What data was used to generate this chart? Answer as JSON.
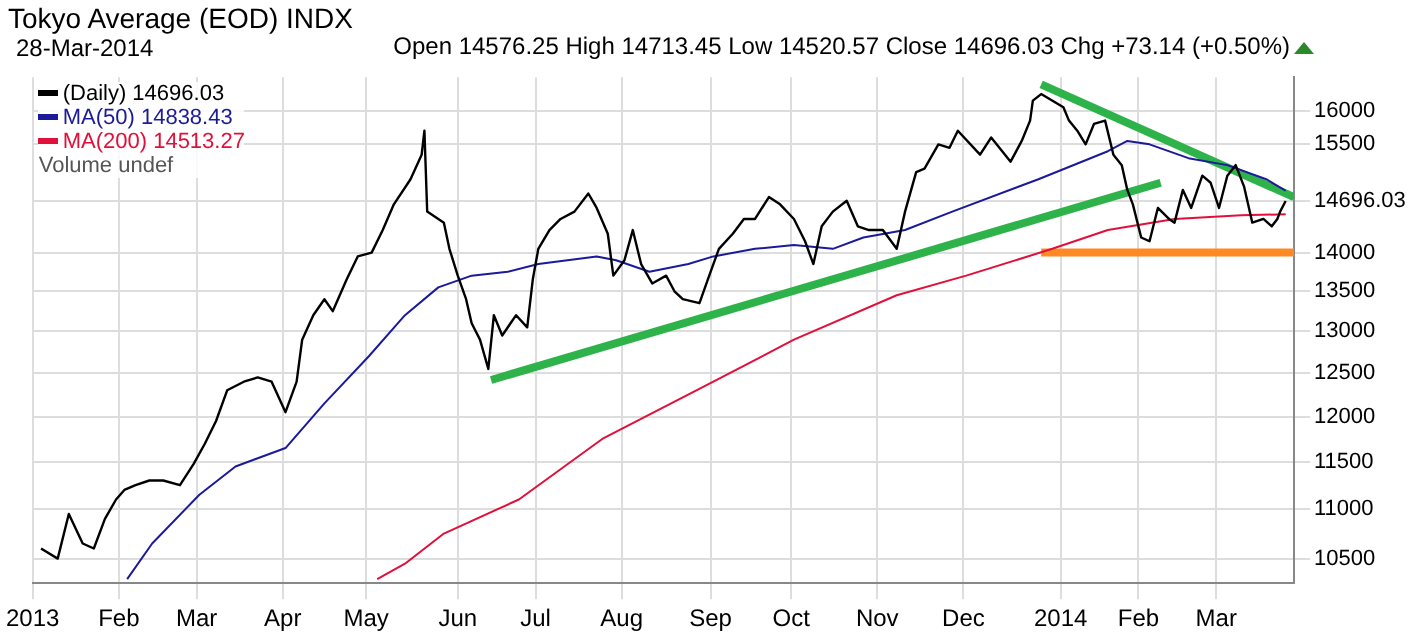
{
  "chart_data": {
    "type": "line",
    "title": "Tokyo Average (EOD) INDX",
    "subtitle": "28-Mar-2014",
    "annotations": [
      "Open 14576.25 High 14713.45 Low 14520.57 Close 14696.03 Chg +73.14 (+0.50%)",
      "Volume undef"
    ],
    "log": "y",
    "grid": true,
    "legend": "top left",
    "marker": "none",
    "xlim": [
      "2013-01-01",
      "2014-03-31"
    ],
    "xticks": [
      {
        "value": "2013-01-01",
        "label": "2013"
      },
      {
        "value": "2013-02-01",
        "label": "Feb"
      },
      {
        "value": "2013-03-01",
        "label": "Mar"
      },
      {
        "value": "2013-04-01",
        "label": "Apr"
      },
      {
        "value": "2013-05-01",
        "label": "May"
      },
      {
        "value": "2013-06-03",
        "label": "Jun"
      },
      {
        "value": "2013-07-01",
        "label": "Jul"
      },
      {
        "value": "2013-08-01",
        "label": "Aug"
      },
      {
        "value": "2013-09-02",
        "label": "Sep"
      },
      {
        "value": "2013-10-01",
        "label": "Oct"
      },
      {
        "value": "2013-11-01",
        "label": "Nov"
      },
      {
        "value": "2013-12-02",
        "label": "Dec"
      },
      {
        "value": "2014-01-06",
        "label": "2014"
      },
      {
        "value": "2014-02-03",
        "label": "Feb"
      },
      {
        "value": "2014-03-03",
        "label": "Mar"
      }
    ],
    "ylim": [
      10260,
      16510
    ],
    "yticks": [
      10500,
      11000,
      11500,
      12000,
      12500,
      13000,
      13500,
      14000,
      14696.03,
      15500,
      16000
    ],
    "series": [
      {
        "name": "(Daily) 14696.03",
        "color": "#000000",
        "x": [
          "2013-01-04",
          "2013-01-10",
          "2013-01-14",
          "2013-01-19",
          "2013-01-23",
          "2013-01-27",
          "2013-01-31",
          "2013-02-03",
          "2013-02-07",
          "2013-02-12",
          "2013-02-17",
          "2013-02-23",
          "2013-02-28",
          "2013-03-04",
          "2013-03-08",
          "2013-03-12",
          "2013-03-18",
          "2013-03-23",
          "2013-03-28",
          "2013-04-02",
          "2013-04-06",
          "2013-04-08",
          "2013-04-12",
          "2013-04-16",
          "2013-04-19",
          "2013-04-24",
          "2013-04-28",
          "2013-05-03",
          "2013-05-07",
          "2013-05-11",
          "2013-05-17",
          "2013-05-21",
          "2013-05-22",
          "2013-05-23",
          "2013-05-29",
          "2013-05-31",
          "2013-06-03",
          "2013-06-06",
          "2013-06-08",
          "2013-06-11",
          "2013-06-14",
          "2013-06-16",
          "2013-06-19",
          "2013-06-22",
          "2013-06-24",
          "2013-06-28",
          "2013-06-30",
          "2013-07-02",
          "2013-07-06",
          "2013-07-10",
          "2013-07-15",
          "2013-07-20",
          "2013-07-23",
          "2013-07-27",
          "2013-07-29",
          "2013-08-02",
          "2013-08-05",
          "2013-08-08",
          "2013-08-12",
          "2013-08-17",
          "2013-08-20",
          "2013-08-23",
          "2013-08-29",
          "2013-09-01",
          "2013-09-05",
          "2013-09-10",
          "2013-09-14",
          "2013-09-18",
          "2013-09-23",
          "2013-09-27",
          "2013-10-02",
          "2013-10-06",
          "2013-10-09",
          "2013-10-12",
          "2013-10-16",
          "2013-10-21",
          "2013-10-25",
          "2013-10-29",
          "2013-11-03",
          "2013-11-08",
          "2013-11-11",
          "2013-11-15",
          "2013-11-18",
          "2013-11-23",
          "2013-11-27",
          "2013-11-30",
          "2013-12-08",
          "2013-12-12",
          "2013-12-19",
          "2013-12-23",
          "2013-12-26",
          "2013-12-27",
          "2013-12-30",
          "2014-01-07",
          "2014-01-09",
          "2014-01-12",
          "2014-01-15",
          "2014-01-18",
          "2014-01-22",
          "2014-01-25",
          "2014-01-28",
          "2014-01-30",
          "2014-02-01",
          "2014-02-04",
          "2014-02-07",
          "2014-02-10",
          "2014-02-14",
          "2014-02-16",
          "2014-02-19",
          "2014-02-22",
          "2014-02-26",
          "2014-03-01",
          "2014-03-04",
          "2014-03-07",
          "2014-03-10",
          "2014-03-13",
          "2014-03-16",
          "2014-03-20",
          "2014-03-23",
          "2014-03-25",
          "2014-03-26",
          "2014-03-28"
        ],
        "values": [
          10600,
          10500,
          10950,
          10650,
          10600,
          10900,
          11100,
          11200,
          11250,
          11300,
          11300,
          11250,
          11480,
          11700,
          11950,
          12300,
          12400,
          12450,
          12400,
          12050,
          12400,
          12900,
          13200,
          13400,
          13250,
          13650,
          13950,
          14000,
          14300,
          14650,
          15000,
          15350,
          15700,
          14550,
          14400,
          14050,
          13700,
          13400,
          13100,
          12900,
          12550,
          13200,
          12950,
          13100,
          13200,
          13050,
          13650,
          14050,
          14300,
          14450,
          14550,
          14800,
          14600,
          14250,
          13700,
          13900,
          14300,
          13850,
          13600,
          13700,
          13500,
          13400,
          13350,
          13650,
          14050,
          14250,
          14450,
          14450,
          14750,
          14650,
          14450,
          14150,
          13850,
          14350,
          14550,
          14700,
          14350,
          14300,
          14300,
          14050,
          14550,
          15100,
          15150,
          15500,
          15450,
          15700,
          15350,
          15600,
          15250,
          15550,
          15850,
          16150,
          16250,
          16050,
          15850,
          15700,
          15500,
          15800,
          15850,
          15350,
          15200,
          14850,
          14650,
          14200,
          14150,
          14600,
          14450,
          14400,
          14850,
          14600,
          15050,
          14950,
          14600,
          15050,
          15200,
          14900,
          14400,
          14450,
          14350,
          14450,
          14550,
          14696.03
        ]
      },
      {
        "name": "MA(50) 14838.43",
        "color": "#1a1a9a",
        "x": [
          "2013-02-04",
          "2013-02-13",
          "2013-03-02",
          "2013-03-15",
          "2013-04-02",
          "2013-04-16",
          "2013-05-02",
          "2013-05-15",
          "2013-05-27",
          "2013-06-08",
          "2013-06-21",
          "2013-07-02",
          "2013-07-23",
          "2013-07-30",
          "2013-08-11",
          "2013-08-25",
          "2013-09-03",
          "2013-09-18",
          "2013-10-02",
          "2013-10-16",
          "2013-10-27",
          "2013-11-11",
          "2013-11-28",
          "2013-12-29",
          "2014-01-23",
          "2014-01-30",
          "2014-02-07",
          "2014-02-21",
          "2014-03-07",
          "2014-03-21",
          "2014-03-28"
        ],
        "values": [
          10300,
          10650,
          11150,
          11450,
          11650,
          12150,
          12700,
          13200,
          13550,
          13700,
          13750,
          13850,
          13950,
          13900,
          13750,
          13850,
          13950,
          14050,
          14100,
          14050,
          14200,
          14300,
          14550,
          15000,
          15400,
          15550,
          15500,
          15300,
          15200,
          15000,
          14838.43
        ]
      },
      {
        "name": "MA(200) 14513.27",
        "color": "#e0103a",
        "x": [
          "2013-05-05",
          "2013-05-15",
          "2013-05-29",
          "2013-06-25",
          "2013-07-25",
          "2013-09-03",
          "2013-10-02",
          "2013-11-08",
          "2013-12-03",
          "2014-01-03",
          "2014-01-23",
          "2014-02-16",
          "2014-03-12",
          "2014-03-28"
        ],
        "values": [
          10300,
          10450,
          10750,
          11100,
          11750,
          12400,
          12900,
          13450,
          13700,
          14050,
          14300,
          14450,
          14500,
          14513.27
        ]
      },
      {
        "color": "#2db34a",
        "x": [
          "2013-06-15",
          "2014-02-11"
        ],
        "values": [
          12420,
          14950
        ]
      },
      {
        "color": "#2db34a",
        "x": [
          "2013-12-30",
          "2014-03-31"
        ],
        "values": [
          16400,
          14750
        ]
      },
      {
        "color": "#ff8a24",
        "x": [
          "2013-12-30",
          "2014-03-31"
        ],
        "values": [
          14000,
          14000
        ]
      }
    ]
  }
}
